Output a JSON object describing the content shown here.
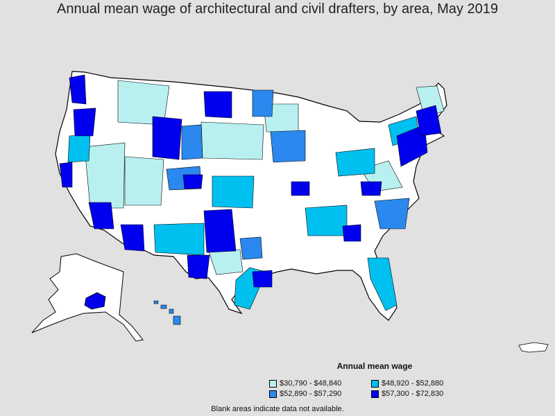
{
  "title": "Annual mean wage of architectural and civil drafters, by area, May 2019",
  "legend": {
    "title": "Annual mean wage",
    "items": [
      {
        "label": "$30,790 - $48,840",
        "color": "#b8f0f0"
      },
      {
        "label": "$48,920 - $52,880",
        "color": "#00c0f0"
      },
      {
        "label": "$52,890 - $57,290",
        "color": "#2b88ee"
      },
      {
        "label": "$57,300 - $72,830",
        "color": "#0000ee"
      }
    ]
  },
  "no_data_color": "#ffffff",
  "footnote": "Blank areas indicate data not available."
}
